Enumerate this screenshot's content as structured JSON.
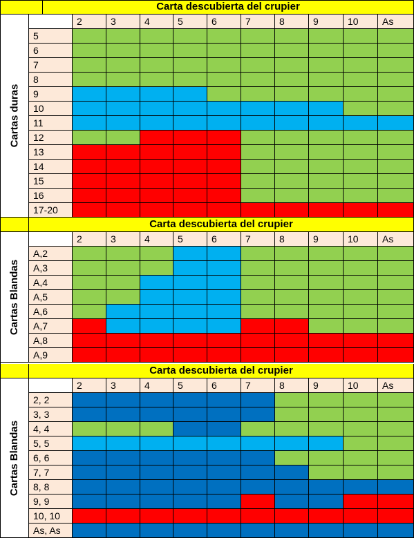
{
  "colors": {
    "green": "#92d050",
    "light_blue": "#00b0f0",
    "dark_blue": "#0070c0",
    "red": "#ff0000",
    "yellow": "#ffff00",
    "peach": "#fde9d9",
    "white": "#ffffff"
  },
  "sections": [
    {
      "title": "Carta descubierta del crupier",
      "side_label": "Cartas duras",
      "dealer_cards": [
        "2",
        "3",
        "4",
        "5",
        "6",
        "7",
        "8",
        "9",
        "10",
        "As"
      ],
      "rows": [
        {
          "label": "5",
          "cells": [
            "G",
            "G",
            "G",
            "G",
            "G",
            "G",
            "G",
            "G",
            "G",
            "G"
          ]
        },
        {
          "label": "6",
          "cells": [
            "G",
            "G",
            "G",
            "G",
            "G",
            "G",
            "G",
            "G",
            "G",
            "G"
          ]
        },
        {
          "label": "7",
          "cells": [
            "G",
            "G",
            "G",
            "G",
            "G",
            "G",
            "G",
            "G",
            "G",
            "G"
          ]
        },
        {
          "label": "8",
          "cells": [
            "G",
            "G",
            "G",
            "G",
            "G",
            "G",
            "G",
            "G",
            "G",
            "G"
          ]
        },
        {
          "label": "9",
          "cells": [
            "L",
            "L",
            "L",
            "L",
            "G",
            "G",
            "G",
            "G",
            "G",
            "G"
          ]
        },
        {
          "label": "10",
          "cells": [
            "L",
            "L",
            "L",
            "L",
            "L",
            "L",
            "L",
            "L",
            "G",
            "G"
          ]
        },
        {
          "label": "11",
          "cells": [
            "L",
            "L",
            "L",
            "L",
            "L",
            "L",
            "L",
            "L",
            "L",
            "L"
          ]
        },
        {
          "label": "12",
          "cells": [
            "G",
            "G",
            "R",
            "R",
            "R",
            "G",
            "G",
            "G",
            "G",
            "G"
          ]
        },
        {
          "label": "13",
          "cells": [
            "R",
            "R",
            "R",
            "R",
            "R",
            "G",
            "G",
            "G",
            "G",
            "G"
          ]
        },
        {
          "label": "14",
          "cells": [
            "R",
            "R",
            "R",
            "R",
            "R",
            "G",
            "G",
            "G",
            "G",
            "G"
          ]
        },
        {
          "label": "15",
          "cells": [
            "R",
            "R",
            "R",
            "R",
            "R",
            "G",
            "G",
            "G",
            "G",
            "G"
          ]
        },
        {
          "label": "16",
          "cells": [
            "R",
            "R",
            "R",
            "R",
            "R",
            "G",
            "G",
            "G",
            "G",
            "G"
          ]
        },
        {
          "label": "17-20",
          "cells": [
            "R",
            "R",
            "R",
            "R",
            "R",
            "R",
            "R",
            "R",
            "R",
            "R"
          ]
        }
      ]
    },
    {
      "title": "Carta descubierta del crupier",
      "side_label": "Cartas Blandas",
      "dealer_cards": [
        "2",
        "3",
        "4",
        "5",
        "6",
        "7",
        "8",
        "9",
        "10",
        "As"
      ],
      "rows": [
        {
          "label": "A,2",
          "cells": [
            "G",
            "G",
            "G",
            "L",
            "L",
            "G",
            "G",
            "G",
            "G",
            "G"
          ]
        },
        {
          "label": "A,3",
          "cells": [
            "G",
            "G",
            "G",
            "L",
            "L",
            "G",
            "G",
            "G",
            "G",
            "G"
          ]
        },
        {
          "label": "A,4",
          "cells": [
            "G",
            "G",
            "L",
            "L",
            "L",
            "G",
            "G",
            "G",
            "G",
            "G"
          ]
        },
        {
          "label": "A,5",
          "cells": [
            "G",
            "G",
            "L",
            "L",
            "L",
            "G",
            "G",
            "G",
            "G",
            "G"
          ]
        },
        {
          "label": "A,6",
          "cells": [
            "G",
            "L",
            "L",
            "L",
            "L",
            "G",
            "G",
            "G",
            "G",
            "G"
          ]
        },
        {
          "label": "A,7",
          "cells": [
            "R",
            "L",
            "L",
            "L",
            "L",
            "R",
            "R",
            "G",
            "G",
            "G"
          ]
        },
        {
          "label": "A,8",
          "cells": [
            "R",
            "R",
            "R",
            "R",
            "R",
            "R",
            "R",
            "R",
            "R",
            "R"
          ]
        },
        {
          "label": "A,9",
          "cells": [
            "R",
            "R",
            "R",
            "R",
            "R",
            "R",
            "R",
            "R",
            "R",
            "R"
          ]
        }
      ]
    },
    {
      "title": "Carta descubierta del crupier",
      "side_label": "Cartas Blandas",
      "dealer_cards": [
        "2",
        "3",
        "4",
        "5",
        "6",
        "7",
        "8",
        "9",
        "10",
        "As"
      ],
      "rows": [
        {
          "label": "2, 2",
          "cells": [
            "D",
            "D",
            "D",
            "D",
            "D",
            "D",
            "G",
            "G",
            "G",
            "G"
          ]
        },
        {
          "label": "3, 3",
          "cells": [
            "D",
            "D",
            "D",
            "D",
            "D",
            "D",
            "G",
            "G",
            "G",
            "G"
          ]
        },
        {
          "label": "4, 4",
          "cells": [
            "G",
            "G",
            "G",
            "D",
            "D",
            "G",
            "G",
            "G",
            "G",
            "G"
          ]
        },
        {
          "label": "5, 5",
          "cells": [
            "L",
            "L",
            "L",
            "L",
            "L",
            "L",
            "L",
            "L",
            "G",
            "G"
          ]
        },
        {
          "label": "6, 6",
          "cells": [
            "D",
            "D",
            "D",
            "D",
            "D",
            "D",
            "G",
            "G",
            "G",
            "G"
          ]
        },
        {
          "label": "7, 7",
          "cells": [
            "D",
            "D",
            "D",
            "D",
            "D",
            "D",
            "D",
            "G",
            "G",
            "G"
          ]
        },
        {
          "label": "8, 8",
          "cells": [
            "D",
            "D",
            "D",
            "D",
            "D",
            "D",
            "D",
            "D",
            "D",
            "D"
          ]
        },
        {
          "label": "9, 9",
          "cells": [
            "D",
            "D",
            "D",
            "D",
            "D",
            "R",
            "D",
            "D",
            "R",
            "R"
          ]
        },
        {
          "label": "10, 10",
          "cells": [
            "R",
            "R",
            "R",
            "R",
            "R",
            "R",
            "R",
            "R",
            "R",
            "R"
          ]
        },
        {
          "label": "As, As",
          "cells": [
            "D",
            "D",
            "D",
            "D",
            "D",
            "D",
            "D",
            "D",
            "D",
            "D"
          ]
        }
      ]
    }
  ]
}
